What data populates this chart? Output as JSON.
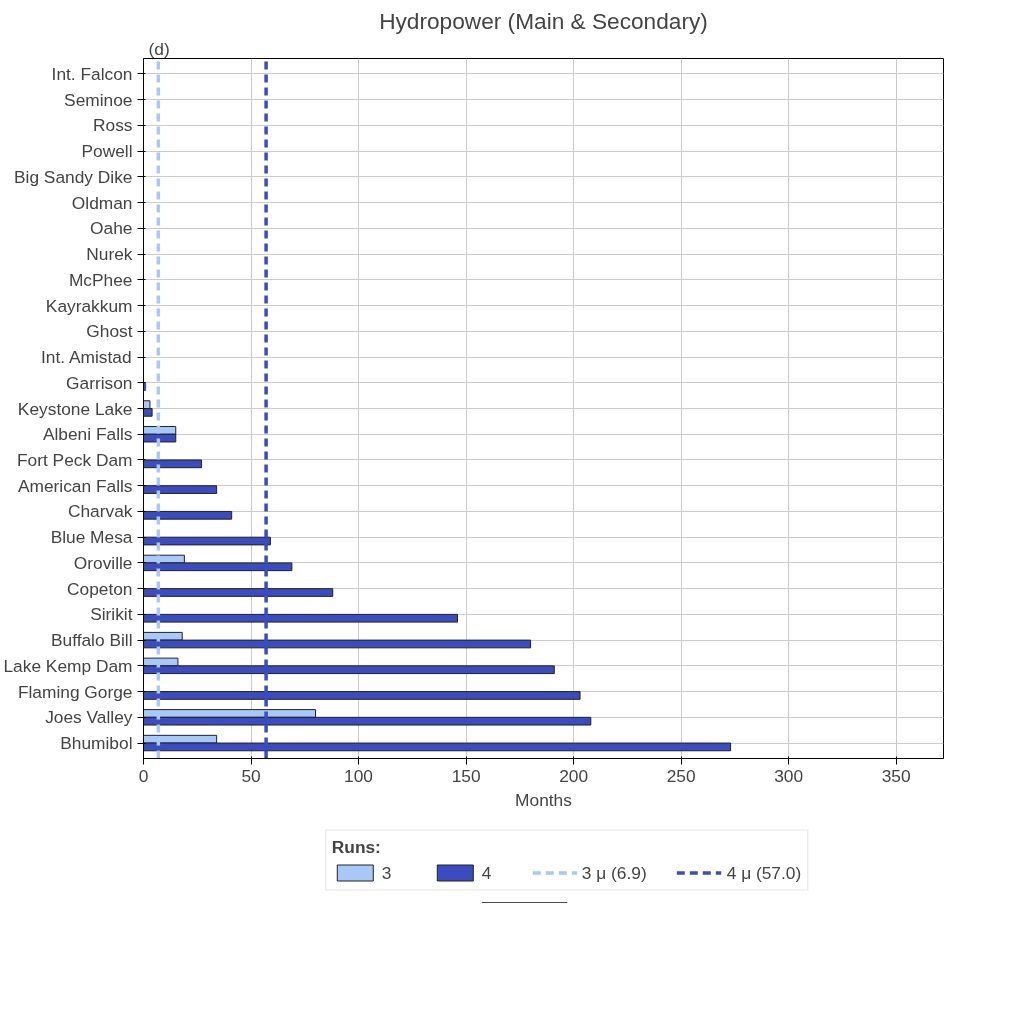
{
  "chart_data": {
    "type": "bar",
    "orientation": "horizontal",
    "title": "Hydropower (Main & Secondary)",
    "xlabel": "Months",
    "legend_title": "Runs:",
    "annotations": [
      "(d)"
    ],
    "categories": [
      "Int. Falcon",
      "Seminoe",
      "Ross",
      "Powell",
      "Big Sandy Dike",
      "Oldman",
      "Oahe",
      "Nurek",
      "McPhee",
      "Kayrakkum",
      "Ghost",
      "Int. Amistad",
      "Garrison",
      "Keystone Lake",
      "Albeni Falls",
      "Fort Peck Dam",
      "American Falls",
      "Charvak",
      "Blue Mesa",
      "Oroville",
      "Copeton",
      "Sirikit",
      "Buffalo Bill",
      "Lake Kemp Dam",
      "Flaming Gorge",
      "Joes Valley",
      "Bhumibol"
    ],
    "series": [
      {
        "name": "3",
        "color": "#a8c8f8",
        "values": [
          0,
          0,
          0,
          0,
          0,
          0,
          0,
          0,
          0,
          0,
          0,
          0,
          0,
          3,
          15,
          0,
          0,
          0,
          0,
          19,
          0,
          0,
          18,
          16,
          0,
          80,
          34
        ]
      },
      {
        "name": "4",
        "color": "#3a4cc0",
        "values": [
          0,
          0,
          0,
          0,
          0,
          0,
          0,
          0,
          0,
          0,
          0,
          0,
          1,
          4,
          15,
          27,
          34,
          41,
          59,
          69,
          88,
          146,
          180,
          191,
          203,
          208,
          273
        ]
      }
    ],
    "ref_lines": [
      {
        "axis": "x",
        "value": 6.9,
        "label": "3 μ (6.9)",
        "color": "#a8c8f8",
        "line_style": "dashed"
      },
      {
        "axis": "x",
        "value": 57.0,
        "label": "4 μ (57.0)",
        "color": "#3a4cc0",
        "line_style": "dashed"
      }
    ],
    "xlim": [
      0,
      372
    ],
    "xticks": [
      0,
      50,
      100,
      150,
      200,
      250,
      300,
      350
    ],
    "grid": true,
    "legend": "bottom"
  }
}
